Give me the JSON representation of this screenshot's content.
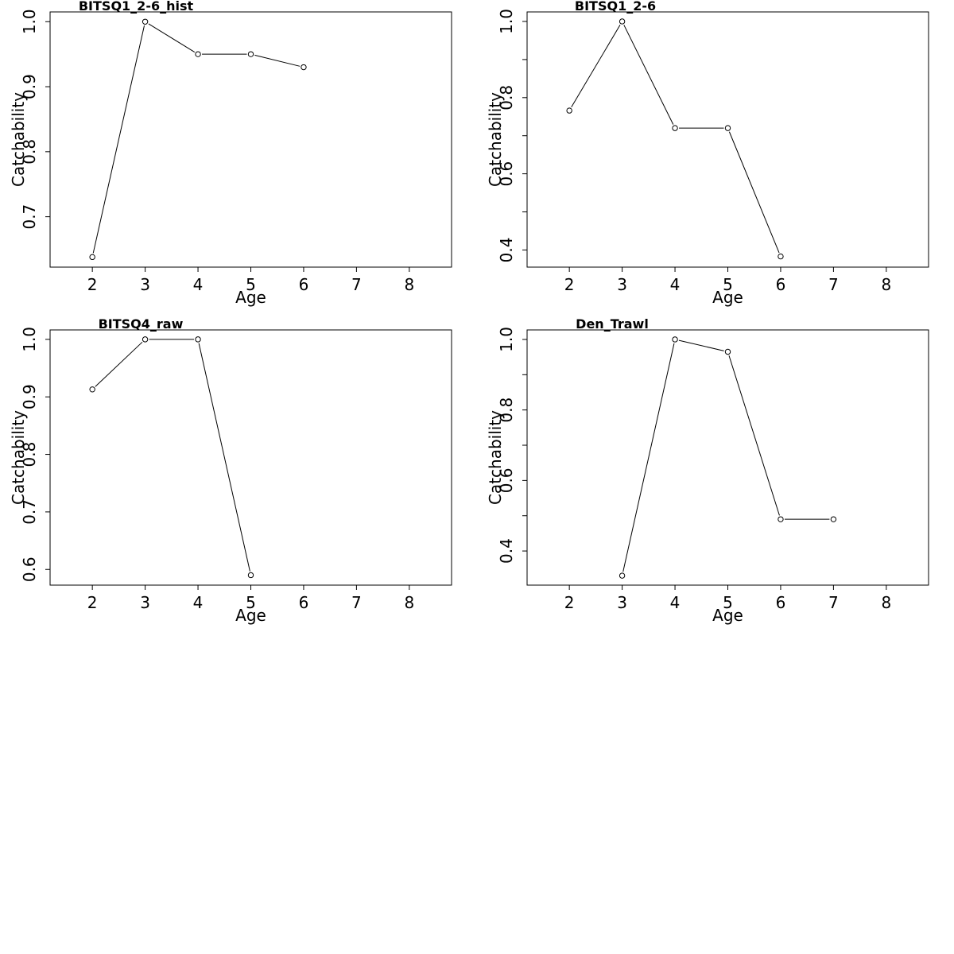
{
  "chart_data": [
    {
      "type": "line",
      "title": "BITSQ1_2-6_hist",
      "xlabel": "Age",
      "ylabel": "Catchability",
      "xlim": [
        1.2,
        8.8
      ],
      "ylim": [
        0.6225,
        1.015
      ],
      "xticks": [
        2,
        3,
        4,
        5,
        6,
        7,
        8
      ],
      "yticks": [
        0.7,
        0.8,
        0.9,
        1.0
      ],
      "yticks_major": [
        0.7,
        0.8,
        0.9,
        1.0
      ],
      "ytick_labels": [
        "0.7",
        "0.8",
        "0.9",
        "1.0"
      ],
      "x": [
        2,
        3,
        4,
        5,
        6
      ],
      "y": [
        0.638,
        1.0,
        0.95,
        0.95,
        0.93
      ]
    },
    {
      "type": "line",
      "title": "BITSQ1_2-6",
      "xlabel": "Age",
      "ylabel": "Catchability",
      "xlim": [
        1.2,
        8.8
      ],
      "ylim": [
        0.355,
        1.025
      ],
      "xticks": [
        2,
        3,
        4,
        5,
        6,
        7,
        8
      ],
      "yticks": [
        0.4,
        0.5,
        0.6,
        0.7,
        0.8,
        0.9,
        1.0
      ],
      "yticks_major": [
        0.4,
        0.6,
        0.8,
        1.0
      ],
      "ytick_labels": [
        "0.4",
        "0.6",
        "0.8",
        "1.0"
      ],
      "x": [
        2,
        3,
        4,
        5,
        6
      ],
      "y": [
        0.766,
        1.0,
        0.72,
        0.72,
        0.383
      ]
    },
    {
      "type": "line",
      "title": "BITSQ4_raw",
      "xlabel": "Age",
      "ylabel": "Catchability",
      "xlim": [
        1.2,
        8.8
      ],
      "ylim": [
        0.5727,
        1.0164
      ],
      "xticks": [
        2,
        3,
        4,
        5,
        6,
        7,
        8
      ],
      "yticks": [
        0.6,
        0.7,
        0.8,
        0.9,
        1.0
      ],
      "yticks_major": [
        0.6,
        0.7,
        0.8,
        0.9,
        1.0
      ],
      "ytick_labels": [
        "0.6",
        "0.7",
        "0.8",
        "0.9",
        "1.0"
      ],
      "x": [
        2,
        3,
        4,
        5
      ],
      "y": [
        0.913,
        1.0,
        1.0,
        0.59
      ]
    },
    {
      "type": "line",
      "title": "Den_Trawl",
      "xlabel": "Age",
      "ylabel": "Catchability",
      "xlim": [
        1.2,
        8.8
      ],
      "ylim": [
        0.3032,
        1.027
      ],
      "xticks": [
        2,
        3,
        4,
        5,
        6,
        7,
        8
      ],
      "yticks": [
        0.4,
        0.5,
        0.6,
        0.7,
        0.8,
        0.9,
        1.0
      ],
      "yticks_major": [
        0.4,
        0.6,
        0.8,
        1.0
      ],
      "ytick_labels": [
        "0.4",
        "0.6",
        "0.8",
        "1.0"
      ],
      "x": [
        3,
        4,
        5,
        6,
        7
      ],
      "y": [
        0.33,
        1.0,
        0.965,
        0.49,
        0.49
      ]
    }
  ]
}
